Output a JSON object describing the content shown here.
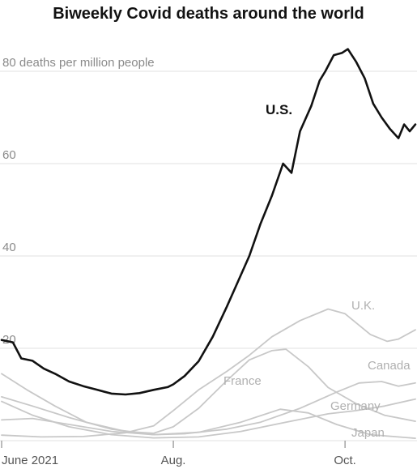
{
  "chart_data": {
    "type": "line",
    "title": "Biweekly Covid deaths around the world",
    "ylabel": "deaths per million people",
    "ylim": [
      0,
      88
    ],
    "y_ticks": [
      {
        "value": 80,
        "label": "80 deaths per million people"
      },
      {
        "value": 60,
        "label": "60"
      },
      {
        "value": 40,
        "label": "40"
      },
      {
        "value": 20,
        "label": "20"
      }
    ],
    "x_ticks": [
      {
        "date": "2021-06-01",
        "label": "June 2021"
      },
      {
        "date": "2021-08-01",
        "label": "Aug."
      },
      {
        "date": "2021-10-01",
        "label": "Oct."
      }
    ],
    "x_range": [
      "2021-06-01",
      "2021-10-26"
    ],
    "grid": true,
    "series": [
      {
        "name": "U.S.",
        "color": "#111111",
        "emphasis": true,
        "points": [
          [
            "2021-06-01",
            21.8
          ],
          [
            "2021-06-05",
            21.3
          ],
          [
            "2021-06-08",
            17.8
          ],
          [
            "2021-06-12",
            17.3
          ],
          [
            "2021-06-16",
            15.6
          ],
          [
            "2021-06-20",
            14.5
          ],
          [
            "2021-06-25",
            12.8
          ],
          [
            "2021-06-30",
            11.8
          ],
          [
            "2021-07-05",
            11.0
          ],
          [
            "2021-07-10",
            10.2
          ],
          [
            "2021-07-15",
            10.0
          ],
          [
            "2021-07-20",
            10.3
          ],
          [
            "2021-07-25",
            11.0
          ],
          [
            "2021-07-30",
            11.6
          ],
          [
            "2021-08-01",
            12.2
          ],
          [
            "2021-08-05",
            14.0
          ],
          [
            "2021-08-10",
            17.2
          ],
          [
            "2021-08-15",
            22.5
          ],
          [
            "2021-08-20",
            29.0
          ],
          [
            "2021-08-24",
            34.5
          ],
          [
            "2021-08-28",
            40.0
          ],
          [
            "2021-09-01",
            47.0
          ],
          [
            "2021-09-05",
            53.0
          ],
          [
            "2021-09-09",
            60.0
          ],
          [
            "2021-09-12",
            58.0
          ],
          [
            "2021-09-15",
            67.0
          ],
          [
            "2021-09-19",
            72.5
          ],
          [
            "2021-09-22",
            78.0
          ],
          [
            "2021-09-24",
            80.0
          ],
          [
            "2021-09-27",
            83.5
          ],
          [
            "2021-09-30",
            84.0
          ],
          [
            "2021-10-02",
            84.8
          ],
          [
            "2021-10-05",
            82.0
          ],
          [
            "2021-10-08",
            78.5
          ],
          [
            "2021-10-11",
            73.0
          ],
          [
            "2021-10-14",
            70.0
          ],
          [
            "2021-10-17",
            67.5
          ],
          [
            "2021-10-20",
            65.5
          ],
          [
            "2021-10-22",
            68.5
          ],
          [
            "2021-10-24",
            67.0
          ],
          [
            "2021-10-26",
            68.5
          ]
        ]
      },
      {
        "name": "U.K.",
        "color": "#c8c8c8",
        "points": [
          [
            "2021-06-01",
            1.2
          ],
          [
            "2021-06-15",
            0.8
          ],
          [
            "2021-06-30",
            0.9
          ],
          [
            "2021-07-15",
            1.7
          ],
          [
            "2021-07-25",
            3.2
          ],
          [
            "2021-08-01",
            6.5
          ],
          [
            "2021-08-10",
            11.0
          ],
          [
            "2021-08-20",
            15.0
          ],
          [
            "2021-08-28",
            18.5
          ],
          [
            "2021-09-05",
            22.5
          ],
          [
            "2021-09-15",
            26.0
          ],
          [
            "2021-09-25",
            28.5
          ],
          [
            "2021-10-01",
            27.5
          ],
          [
            "2021-10-10",
            23.0
          ],
          [
            "2021-10-16",
            21.5
          ],
          [
            "2021-10-20",
            22.0
          ],
          [
            "2021-10-26",
            24.0
          ]
        ]
      },
      {
        "name": "France",
        "color": "#c8c8c8",
        "points": [
          [
            "2021-06-01",
            14.5
          ],
          [
            "2021-06-10",
            11.0
          ],
          [
            "2021-06-20",
            7.5
          ],
          [
            "2021-07-01",
            4.0
          ],
          [
            "2021-07-15",
            2.0
          ],
          [
            "2021-07-25",
            1.6
          ],
          [
            "2021-08-01",
            3.0
          ],
          [
            "2021-08-10",
            7.0
          ],
          [
            "2021-08-20",
            13.0
          ],
          [
            "2021-08-28",
            17.5
          ],
          [
            "2021-09-05",
            19.5
          ],
          [
            "2021-09-10",
            19.8
          ],
          [
            "2021-09-18",
            16.0
          ],
          [
            "2021-09-25",
            11.5
          ],
          [
            "2021-10-05",
            8.0
          ],
          [
            "2021-10-15",
            5.5
          ],
          [
            "2021-10-26",
            4.2
          ]
        ]
      },
      {
        "name": "Canada",
        "color": "#c8c8c8",
        "points": [
          [
            "2021-06-01",
            9.5
          ],
          [
            "2021-06-12",
            7.5
          ],
          [
            "2021-06-25",
            5.0
          ],
          [
            "2021-07-10",
            2.5
          ],
          [
            "2021-07-25",
            1.3
          ],
          [
            "2021-08-05",
            1.5
          ],
          [
            "2021-08-20",
            2.5
          ],
          [
            "2021-09-01",
            4.0
          ],
          [
            "2021-09-15",
            7.0
          ],
          [
            "2021-09-28",
            10.5
          ],
          [
            "2021-10-06",
            12.5
          ],
          [
            "2021-10-14",
            12.8
          ],
          [
            "2021-10-20",
            11.8
          ],
          [
            "2021-10-26",
            12.5
          ]
        ]
      },
      {
        "name": "Germany",
        "color": "#c8c8c8",
        "points": [
          [
            "2021-06-01",
            8.5
          ],
          [
            "2021-06-12",
            5.5
          ],
          [
            "2021-06-25",
            3.0
          ],
          [
            "2021-07-10",
            1.3
          ],
          [
            "2021-07-25",
            0.6
          ],
          [
            "2021-08-10",
            0.8
          ],
          [
            "2021-08-25",
            2.0
          ],
          [
            "2021-09-10",
            4.0
          ],
          [
            "2021-09-25",
            5.8
          ],
          [
            "2021-10-05",
            6.5
          ],
          [
            "2021-10-15",
            7.5
          ],
          [
            "2021-10-26",
            9.0
          ]
        ]
      },
      {
        "name": "Japan",
        "color": "#c8c8c8",
        "points": [
          [
            "2021-06-01",
            4.5
          ],
          [
            "2021-06-12",
            4.8
          ],
          [
            "2021-06-25",
            3.5
          ],
          [
            "2021-07-10",
            2.0
          ],
          [
            "2021-07-25",
            1.3
          ],
          [
            "2021-08-10",
            1.8
          ],
          [
            "2021-08-25",
            4.0
          ],
          [
            "2021-09-08",
            6.8
          ],
          [
            "2021-09-18",
            6.0
          ],
          [
            "2021-09-28",
            3.5
          ],
          [
            "2021-10-10",
            1.3
          ],
          [
            "2021-10-26",
            0.5
          ]
        ]
      }
    ]
  }
}
